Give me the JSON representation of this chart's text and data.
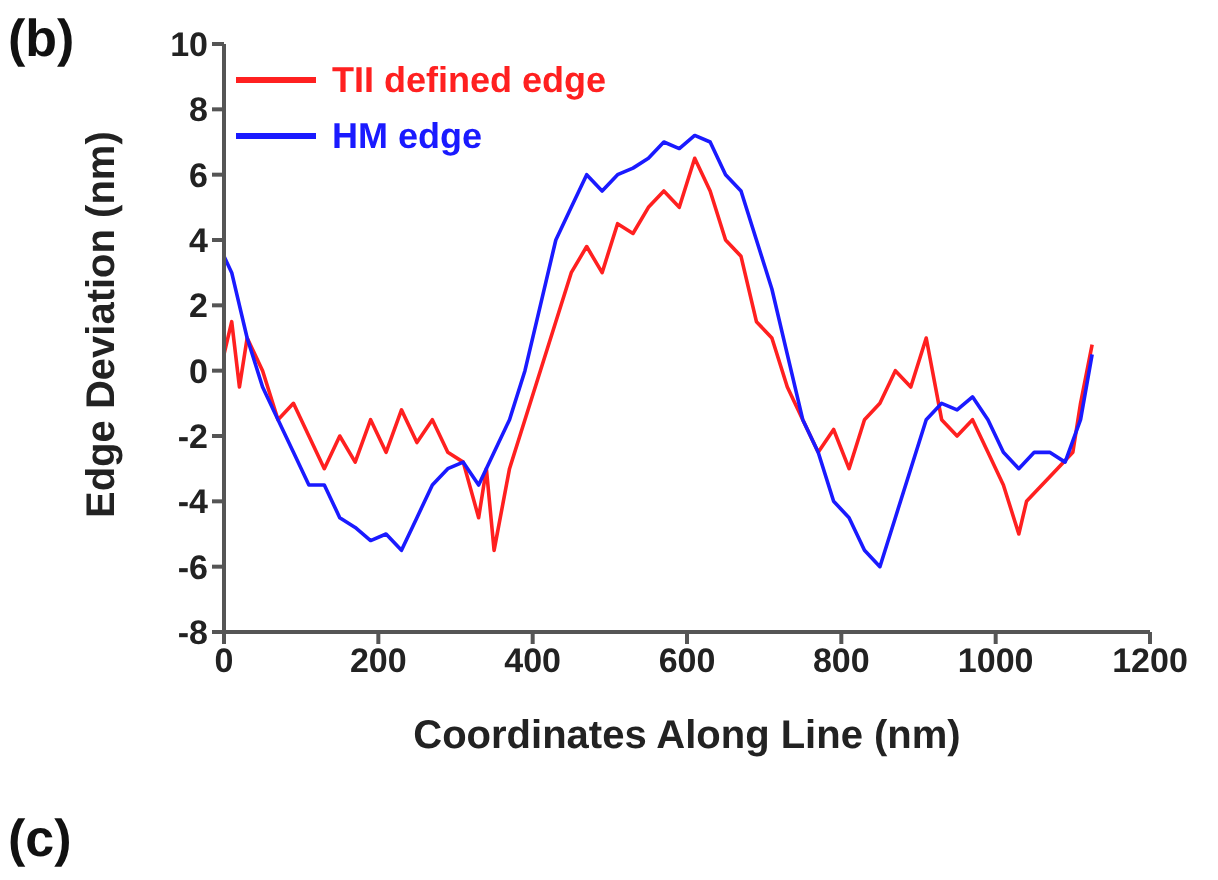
{
  "chart_data": {
    "type": "line",
    "xlabel": "Coordinates Along Line (nm)",
    "ylabel": "Edge Deviation (nm)",
    "annotations": [
      "(b)",
      "(c)"
    ],
    "xlim": [
      0,
      1200
    ],
    "xticks": [
      0,
      200,
      400,
      600,
      800,
      1000,
      1200
    ],
    "ylim": [
      -8,
      10
    ],
    "yticks": [
      -8,
      -6,
      -4,
      -2,
      0,
      2,
      4,
      6,
      8,
      10
    ],
    "grid": false,
    "legend": "top left",
    "marker": "none",
    "line_style": "solid",
    "series": [
      {
        "name": "TII defined edge",
        "color": "#ff2020",
        "x": [
          0,
          10,
          20,
          30,
          50,
          70,
          90,
          110,
          130,
          150,
          170,
          190,
          210,
          230,
          250,
          270,
          290,
          310,
          330,
          340,
          350,
          370,
          390,
          410,
          430,
          450,
          470,
          490,
          510,
          530,
          550,
          570,
          590,
          610,
          630,
          650,
          670,
          690,
          710,
          730,
          750,
          770,
          790,
          810,
          830,
          850,
          870,
          890,
          910,
          930,
          950,
          970,
          990,
          1010,
          1030,
          1040,
          1060,
          1080,
          1100,
          1110,
          1125
        ],
        "values": [
          0.5,
          1.5,
          -0.5,
          1,
          0,
          -1.5,
          -1,
          -2,
          -3,
          -2,
          -2.8,
          -1.5,
          -2.5,
          -1.2,
          -2.2,
          -1.5,
          -2.5,
          -2.8,
          -4.5,
          -3,
          -5.5,
          -3,
          -1.5,
          0,
          1.5,
          3,
          3.8,
          3,
          4.5,
          4.2,
          5,
          5.5,
          5,
          6.5,
          5.5,
          4,
          3.5,
          1.5,
          1,
          -0.5,
          -1.5,
          -2.5,
          -1.8,
          -3,
          -1.5,
          -1,
          0,
          -0.5,
          1,
          -1.5,
          -2,
          -1.5,
          -2.5,
          -3.5,
          -5,
          -4,
          -3.5,
          -3,
          -2.5,
          -1,
          0.8
        ]
      },
      {
        "name": "HM edge",
        "color": "#1a1aff",
        "x": [
          0,
          10,
          20,
          30,
          50,
          70,
          90,
          110,
          130,
          150,
          170,
          190,
          210,
          230,
          250,
          270,
          290,
          310,
          330,
          350,
          370,
          390,
          410,
          430,
          450,
          470,
          490,
          510,
          530,
          550,
          570,
          590,
          610,
          630,
          650,
          670,
          690,
          710,
          730,
          750,
          770,
          790,
          810,
          830,
          850,
          870,
          890,
          910,
          930,
          950,
          970,
          990,
          1010,
          1030,
          1050,
          1070,
          1090,
          1110,
          1125
        ],
        "values": [
          3.5,
          3,
          2,
          1,
          -0.5,
          -1.5,
          -2.5,
          -3.5,
          -3.5,
          -4.5,
          -4.8,
          -5.2,
          -5,
          -5.5,
          -4.5,
          -3.5,
          -3,
          -2.8,
          -3.5,
          -2.5,
          -1.5,
          0,
          2,
          4,
          5,
          6,
          5.5,
          6,
          6.2,
          6.5,
          7,
          6.8,
          7.2,
          7,
          6,
          5.5,
          4,
          2.5,
          0.5,
          -1.5,
          -2.5,
          -4,
          -4.5,
          -5.5,
          -6,
          -4.5,
          -3,
          -1.5,
          -1,
          -1.2,
          -0.8,
          -1.5,
          -2.5,
          -3,
          -2.5,
          -2.5,
          -2.8,
          -1.5,
          0.5
        ]
      }
    ]
  }
}
